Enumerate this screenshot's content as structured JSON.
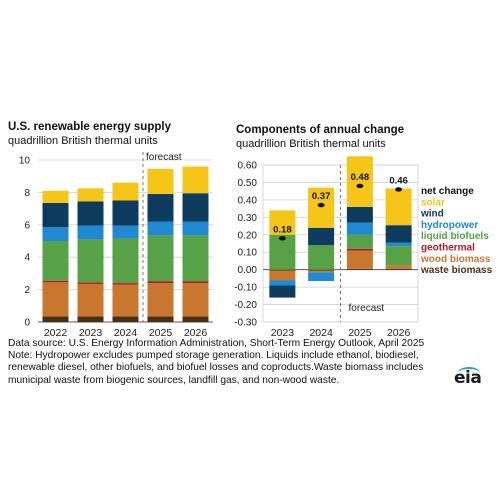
{
  "left_title": "U.S. renewable energy supply",
  "left_subtitle": "quadrillion British thermal units",
  "right_title": "Components of annual change",
  "right_subtitle": "quadrillion British thermal units",
  "left_forecast_label": "forecast",
  "right_forecast_label": "forecast",
  "notes": {
    "source": "Data source: U.S. Energy Information Administration, Short-Term Energy Outlook, April 2025",
    "line1": "Note: Hydropower excludes pumped storage generation. Liquids include ethanol, biodiesel,",
    "line2": "renewable diesel, other biofuels, and biofuel losses and coproducts.Waste biomass includes",
    "line3": "municipal waste from biogenic sources, landfill gas, and non-wood waste."
  },
  "logo_text": "eia",
  "colors": {
    "solar": "#f5c518",
    "wind": "#0d3c5e",
    "hydropower": "#1f8ad1",
    "geothermal": "#b5172b",
    "liquid_biofuels": "#57a246",
    "wood_biomass": "#c9762e",
    "waste_biomass": "#4d2f10",
    "net_change_marker": "#111111"
  },
  "chart_data": [
    {
      "type": "bar",
      "stacked": true,
      "title": "U.S. renewable energy supply",
      "subtitle": "quadrillion British thermal units",
      "categories": [
        "2022",
        "2023",
        "2024",
        "2025",
        "2026"
      ],
      "ylim": [
        0,
        10
      ],
      "yticks": [
        "0",
        "2",
        "4",
        "6",
        "8",
        "10"
      ],
      "grid": true,
      "forecast_from": "2025",
      "series": [
        {
          "key": "waste_biomass",
          "values": [
            0.35,
            0.35,
            0.35,
            0.35,
            0.35
          ]
        },
        {
          "key": "wood_biomass",
          "values": [
            2.1,
            2.0,
            1.95,
            2.05,
            2.05
          ]
        },
        {
          "key": "geothermal",
          "values": [
            0.1,
            0.1,
            0.1,
            0.1,
            0.1
          ]
        },
        {
          "key": "liquid_biofuels",
          "values": [
            2.45,
            2.65,
            2.75,
            2.85,
            2.85
          ]
        },
        {
          "key": "hydropower",
          "values": [
            0.85,
            0.85,
            0.8,
            0.85,
            0.85
          ]
        },
        {
          "key": "wind",
          "values": [
            1.5,
            1.5,
            1.55,
            1.7,
            1.75
          ]
        },
        {
          "key": "solar",
          "values": [
            0.75,
            0.8,
            1.1,
            1.55,
            1.65
          ]
        }
      ]
    },
    {
      "type": "bar",
      "stacked": true,
      "title": "Components of annual change",
      "subtitle": "quadrillion British thermal units",
      "categories": [
        "2023",
        "2024",
        "2025",
        "2026"
      ],
      "ylim": [
        -0.3,
        0.6
      ],
      "yticks": [
        "-0.30",
        "-0.20",
        "-0.10",
        "0.00",
        "0.10",
        "0.20",
        "0.30",
        "0.40",
        "0.50",
        "0.60"
      ],
      "grid": true,
      "forecast_from": "2025",
      "series": [
        {
          "key": "waste_biomass",
          "values": [
            -0.005,
            -0.005,
            0.005,
            0.005
          ]
        },
        {
          "key": "wood_biomass",
          "values": [
            -0.055,
            -0.01,
            0.105,
            0.02
          ]
        },
        {
          "key": "geothermal",
          "values": [
            0.0,
            0.0,
            0.01,
            0.0
          ]
        },
        {
          "key": "liquid_biofuels",
          "values": [
            0.2,
            0.14,
            0.08,
            0.11
          ]
        },
        {
          "key": "hydropower",
          "values": [
            -0.03,
            -0.05,
            0.07,
            0.02
          ]
        },
        {
          "key": "wind",
          "values": [
            -0.07,
            0.1,
            0.09,
            0.1
          ]
        },
        {
          "key": "solar",
          "values": [
            0.14,
            0.23,
            0.29,
            0.21
          ]
        }
      ],
      "net_change": [
        0.18,
        0.37,
        0.48,
        0.46
      ],
      "net_change_labels": [
        "0.18",
        "0.37",
        "0.48",
        "0.46"
      ],
      "legend": [
        {
          "label": "net change",
          "key": "net_change_marker"
        },
        {
          "label": "solar",
          "key": "solar"
        },
        {
          "label": "wind",
          "key": "wind"
        },
        {
          "label": "hydropower",
          "key": "hydropower"
        },
        {
          "label": "liquid biofuels",
          "key": "liquid_biofuels"
        },
        {
          "label": "geothermal",
          "key": "geothermal"
        },
        {
          "label": "wood biomass",
          "key": "wood_biomass"
        },
        {
          "label": "waste biomass",
          "key": "waste_biomass"
        }
      ]
    }
  ]
}
